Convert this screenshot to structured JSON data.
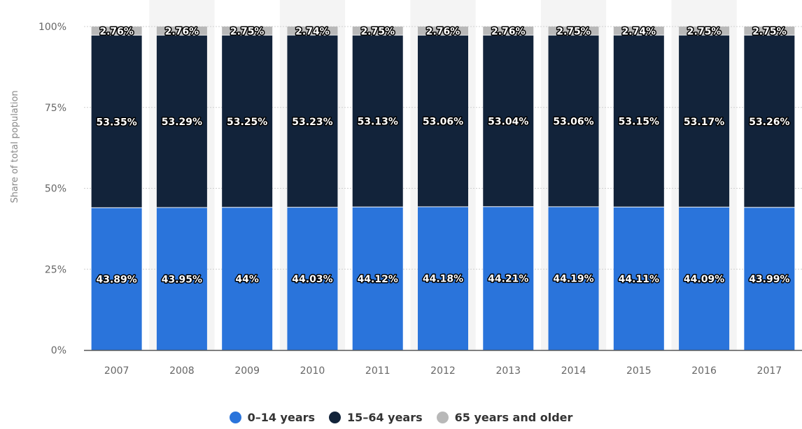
{
  "chart_data": {
    "type": "bar",
    "stacked": true,
    "title": "",
    "xlabel": "",
    "ylabel": "Share of total population",
    "ylim": [
      0,
      100
    ],
    "y_ticks": [
      "0%",
      "25%",
      "50%",
      "75%",
      "100%"
    ],
    "y_tick_values": [
      0,
      25,
      50,
      75,
      100
    ],
    "grid": true,
    "legend_position": "bottom",
    "categories": [
      "2007",
      "2008",
      "2009",
      "2010",
      "2011",
      "2012",
      "2013",
      "2014",
      "2015",
      "2016",
      "2017"
    ],
    "series": [
      {
        "name": "0-14 years",
        "color": "#2a74db",
        "values": [
          43.89,
          43.95,
          44,
          44.03,
          44.12,
          44.18,
          44.21,
          44.19,
          44.11,
          44.09,
          43.99
        ],
        "labels": [
          "43.89%",
          "43.95%",
          "44%",
          "44.03%",
          "44.12%",
          "44.18%",
          "44.21%",
          "44.19%",
          "44.11%",
          "44.09%",
          "43.99%"
        ]
      },
      {
        "name": "15-64 years",
        "color": "#12233a",
        "values": [
          53.35,
          53.29,
          53.25,
          53.23,
          53.13,
          53.06,
          53.04,
          53.06,
          53.15,
          53.17,
          53.26
        ],
        "labels": [
          "53.35%",
          "53.29%",
          "53.25%",
          "53.23%",
          "53.13%",
          "53.06%",
          "53.04%",
          "53.06%",
          "53.15%",
          "53.17%",
          "53.26%"
        ]
      },
      {
        "name": "65 years and older",
        "color": "#b8b8b8",
        "values": [
          2.76,
          2.76,
          2.75,
          2.74,
          2.75,
          2.76,
          2.76,
          2.75,
          2.74,
          2.75,
          2.75
        ],
        "labels": [
          "2.76%",
          "2.76%",
          "2.75%",
          "2.74%",
          "2.75%",
          "2.76%",
          "2.76%",
          "2.75%",
          "2.74%",
          "2.75%",
          "2.75%"
        ]
      }
    ],
    "column_band_color": "#f4f4f4",
    "legend_labels": [
      "0–14 years",
      "15–64 years",
      "65 years and older"
    ]
  }
}
